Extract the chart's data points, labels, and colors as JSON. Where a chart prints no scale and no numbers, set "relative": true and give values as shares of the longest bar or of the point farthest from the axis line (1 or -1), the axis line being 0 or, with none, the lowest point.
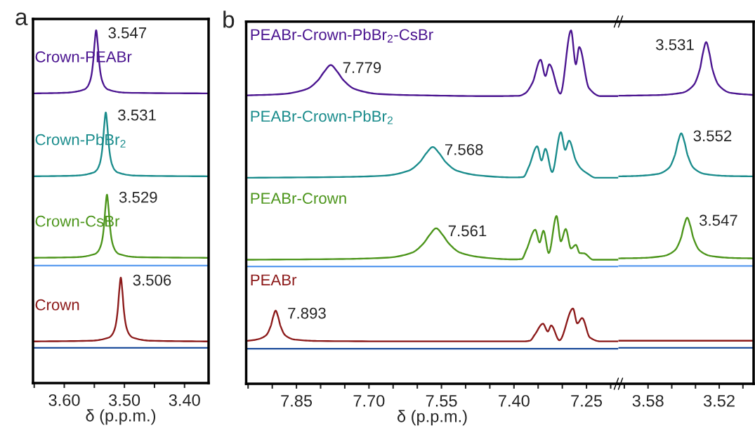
{
  "chart_data": [
    {
      "type": "line",
      "relative": true,
      "tick_labels": "x",
      "xlabel": "δ (p.p.m.)",
      "xlim": [
        3.652,
        3.36
      ],
      "xticks": [
        {
          "value": 3.65,
          "label": null
        },
        {
          "value": 3.6,
          "label": "3.60"
        },
        {
          "value": 3.55,
          "label": null
        },
        {
          "value": 3.5,
          "label": "3.50"
        },
        {
          "value": 3.45,
          "label": null
        },
        {
          "value": 3.4,
          "label": "3.40"
        }
      ],
      "series": [
        {
          "name": "Crown-PEABr",
          "color": "#4b1590",
          "x": [
            3.652,
            3.597,
            3.567,
            3.562,
            3.557,
            3.5545,
            3.552,
            3.5495,
            3.547,
            3.5445,
            3.542,
            3.5395,
            3.537,
            3.532,
            3.527,
            3.497,
            3.36
          ],
          "values": [
            0.821,
            0.823,
            0.832,
            0.839,
            0.857,
            0.876,
            0.911,
            0.964,
            1.0,
            0.964,
            0.911,
            0.876,
            0.857,
            0.839,
            0.832,
            0.823,
            0.821
          ]
        },
        {
          "name": "Crown-PbBr$_{2}$",
          "color": "#1a8c8c",
          "x": [
            3.652,
            3.581,
            3.551,
            3.546,
            3.541,
            3.5385,
            3.536,
            3.5335,
            3.531,
            3.5285,
            3.526,
            3.5235,
            3.521,
            3.516,
            3.511,
            3.481,
            3.36
          ],
          "values": [
            0.586,
            0.588,
            0.597,
            0.604,
            0.622,
            0.642,
            0.677,
            0.731,
            0.767,
            0.731,
            0.677,
            0.642,
            0.622,
            0.604,
            0.597,
            0.588,
            0.586
          ]
        },
        {
          "name": "Crown-CsBr",
          "color": "#4c951b",
          "x": [
            3.652,
            3.579,
            3.549,
            3.544,
            3.539,
            3.5365,
            3.534,
            3.5315,
            3.529,
            3.5265,
            3.524,
            3.5215,
            3.519,
            3.514,
            3.509,
            3.479,
            3.36
          ],
          "values": [
            0.355,
            0.357,
            0.366,
            0.373,
            0.391,
            0.41,
            0.445,
            0.498,
            0.534,
            0.498,
            0.445,
            0.41,
            0.391,
            0.373,
            0.366,
            0.357,
            0.355
          ]
        },
        {
          "name": "Crown",
          "color": "#8c1a1a",
          "x": [
            3.652,
            3.556,
            3.526,
            3.521,
            3.516,
            3.5135,
            3.511,
            3.5085,
            3.506,
            3.5035,
            3.501,
            3.4985,
            3.496,
            3.491,
            3.486,
            3.456,
            3.36
          ],
          "values": [
            0.118,
            0.12,
            0.129,
            0.136,
            0.154,
            0.174,
            0.209,
            0.263,
            0.299,
            0.263,
            0.209,
            0.174,
            0.154,
            0.136,
            0.129,
            0.12,
            0.118
          ]
        }
      ],
      "ref_lines": [
        {
          "axis": "y",
          "value": 0.333,
          "color": "#5a9bef"
        },
        {
          "axis": "y",
          "value": 0.1,
          "color": "#1f4e9c"
        }
      ],
      "annotations": [
        "a",
        {
          "text": "3.547",
          "x": 3.547,
          "y": 1.0
        },
        {
          "text": "3.531",
          "x": 3.531,
          "y": 0.767
        },
        {
          "text": "3.529",
          "x": 3.529,
          "y": 0.534
        },
        {
          "text": "3.506",
          "x": 3.506,
          "y": 0.299
        }
      ]
    },
    {
      "type": "line",
      "relative": true,
      "tick_labels": "x",
      "xlabel": "δ (p.p.m.)",
      "xlim": [
        7.954,
        7.184
      ],
      "xticks": [
        {
          "value": 7.95,
          "label": null
        },
        {
          "value": 7.9,
          "label": null
        },
        {
          "value": 7.85,
          "label": "7.85"
        },
        {
          "value": 7.8,
          "label": null
        },
        {
          "value": 7.75,
          "label": null
        },
        {
          "value": 7.7,
          "label": "7.70"
        },
        {
          "value": 7.65,
          "label": null
        },
        {
          "value": 7.6,
          "label": null
        },
        {
          "value": 7.55,
          "label": "7.55"
        },
        {
          "value": 7.5,
          "label": null
        },
        {
          "value": 7.45,
          "label": null
        },
        {
          "value": 7.4,
          "label": "7.40"
        },
        {
          "value": 7.35,
          "label": null
        },
        {
          "value": 7.3,
          "label": null
        },
        {
          "value": 7.25,
          "label": "7.25"
        },
        {
          "value": 7.2,
          "label": null
        }
      ],
      "series": [
        {
          "name": "PEABr-Crown-PbBr$_{2}$-CsBr",
          "color": "#4b1590",
          "x": [
            7.954,
            7.879,
            7.829,
            7.806,
            7.792,
            7.779,
            7.766,
            7.752,
            7.729,
            7.679,
            7.579,
            7.45,
            7.39,
            7.377,
            7.362,
            7.345,
            7.335,
            7.327,
            7.304,
            7.282,
            7.272,
            7.265,
            7.245,
            7.221,
            7.184
          ],
          "values": [
            0.816,
            0.82,
            0.834,
            0.858,
            0.884,
            0.902,
            0.884,
            0.858,
            0.834,
            0.82,
            0.816,
            0.814,
            0.815,
            0.822,
            0.851,
            0.917,
            0.871,
            0.904,
            0.821,
            1.0,
            0.904,
            0.953,
            0.837,
            0.814,
            0.814
          ]
        },
        {
          "name": "PEABr-Crown-PbBr$_{2}$",
          "color": "#1a8c8c",
          "x": [
            7.954,
            7.768,
            7.668,
            7.618,
            7.595,
            7.581,
            7.568,
            7.555,
            7.541,
            7.518,
            7.468,
            7.4,
            7.381,
            7.369,
            7.352,
            7.343,
            7.335,
            7.321,
            7.303,
            7.294,
            7.286,
            7.272,
            7.262,
            7.248,
            7.231,
            7.184
          ],
          "values": [
            0.583,
            0.585,
            0.589,
            0.603,
            0.627,
            0.653,
            0.67,
            0.653,
            0.627,
            0.603,
            0.589,
            0.584,
            0.585,
            0.615,
            0.672,
            0.632,
            0.665,
            0.599,
            0.712,
            0.662,
            0.688,
            0.632,
            0.61,
            0.595,
            0.583,
            0.583
          ]
        },
        {
          "name": "PEABr-Crown",
          "color": "#4c951b",
          "x": [
            7.954,
            7.761,
            7.661,
            7.611,
            7.588,
            7.574,
            7.561,
            7.548,
            7.534,
            7.511,
            7.461,
            7.4,
            7.384,
            7.374,
            7.356,
            7.347,
            7.339,
            7.328,
            7.312,
            7.303,
            7.293,
            7.282,
            7.272,
            7.264,
            7.255,
            7.236,
            7.184
          ],
          "values": [
            0.351,
            0.353,
            0.357,
            0.371,
            0.396,
            0.422,
            0.44,
            0.422,
            0.396,
            0.371,
            0.357,
            0.352,
            0.353,
            0.38,
            0.436,
            0.4,
            0.433,
            0.37,
            0.475,
            0.403,
            0.438,
            0.383,
            0.393,
            0.37,
            0.369,
            0.351,
            0.351
          ]
        },
        {
          "name": "PEABr",
          "color": "#8c1a1a",
          "x": [
            7.954,
            7.933,
            7.913,
            7.903,
            7.898,
            7.893,
            7.888,
            7.883,
            7.873,
            7.853,
            7.8,
            7.6,
            7.38,
            7.367,
            7.357,
            7.34,
            7.33,
            7.323,
            7.306,
            7.278,
            7.269,
            7.259,
            7.243,
            7.221,
            7.184
          ],
          "values": [
            0.121,
            0.125,
            0.137,
            0.164,
            0.19,
            0.207,
            0.19,
            0.164,
            0.137,
            0.125,
            0.121,
            0.12,
            0.12,
            0.122,
            0.139,
            0.17,
            0.148,
            0.165,
            0.123,
            0.213,
            0.171,
            0.186,
            0.131,
            0.12,
            0.12
          ]
        }
      ],
      "ref_lines": [
        {
          "axis": "y",
          "value": 0.332,
          "color": "#5a9bef"
        },
        {
          "axis": "y",
          "value": 0.099,
          "color": "#1f4e9c"
        }
      ],
      "annotations": [
        "b",
        {
          "text": "7.779",
          "x": 7.779,
          "y": 0.902
        },
        {
          "text": "7.568",
          "x": 7.568,
          "y": 0.67
        },
        {
          "text": "7.561",
          "x": 7.561,
          "y": 0.44
        },
        {
          "text": "7.893",
          "x": 7.893,
          "y": 0.207
        }
      ]
    },
    {
      "type": "line",
      "relative": true,
      "tick_labels": "x",
      "xlim": [
        3.605,
        3.491
      ],
      "xticks": [
        {
          "value": 3.6,
          "label": null
        },
        {
          "value": 3.58,
          "label": "3.58"
        },
        {
          "value": 3.56,
          "label": null
        },
        {
          "value": 3.54,
          "label": null
        },
        {
          "value": 3.52,
          "label": "3.52"
        },
        {
          "value": 3.5,
          "label": null
        }
      ],
      "series": [
        {
          "color": "#4b1590",
          "x": [
            3.605,
            3.571,
            3.551,
            3.5416,
            3.5363,
            3.5337,
            3.531,
            3.5283,
            3.5257,
            3.5204,
            3.511,
            3.491
          ],
          "values": [
            0.843,
            0.845,
            0.852,
            0.874,
            0.921,
            0.968,
            1.0,
            0.968,
            0.921,
            0.874,
            0.852,
            0.845
          ]
        },
        {
          "color": "#1a8c8c",
          "x": [
            3.605,
            3.592,
            3.572,
            3.5626,
            3.5573,
            3.5547,
            3.552,
            3.5493,
            3.5467,
            3.5414,
            3.532,
            3.512,
            3.491
          ],
          "values": [
            0.607,
            0.608,
            0.614,
            0.631,
            0.67,
            0.708,
            0.733,
            0.708,
            0.67,
            0.631,
            0.614,
            0.608,
            0.607
          ]
        },
        {
          "color": "#4c951b",
          "x": [
            3.605,
            3.587,
            3.567,
            3.5576,
            3.5523,
            3.5497,
            3.547,
            3.5443,
            3.5417,
            3.5364,
            3.527,
            3.507,
            3.491
          ],
          "values": [
            0.367,
            0.368,
            0.374,
            0.39,
            0.426,
            0.462,
            0.486,
            0.462,
            0.426,
            0.39,
            0.374,
            0.368,
            0.367
          ]
        },
        {
          "color": "#8c1a1a",
          "x": [
            3.605,
            3.491
          ],
          "values": [
            0.126,
            0.126
          ]
        }
      ],
      "ref_lines": [
        {
          "axis": "y",
          "value": 0.345,
          "color": "#5a9bef"
        },
        {
          "axis": "y",
          "value": 0.105,
          "color": "#1f4e9c"
        }
      ],
      "annotations": [
        {
          "text": "3.531",
          "x": 3.531,
          "y": 1.0
        },
        {
          "text": "3.552",
          "x": 3.552,
          "y": 0.733
        },
        {
          "text": "3.547",
          "x": 3.547,
          "y": 0.486
        }
      ]
    }
  ]
}
